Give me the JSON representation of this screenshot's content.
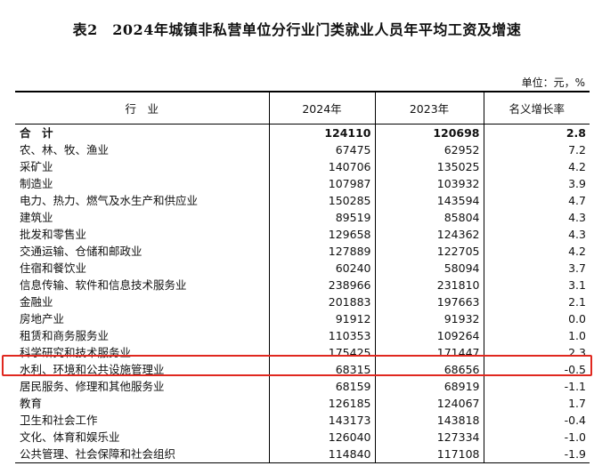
{
  "title": "表2　2024年城镇非私营单位分行业门类就业人员年平均工资及增速",
  "unit": "单位：元，%",
  "headers": [
    "行　业",
    "2024年",
    "2023年",
    "名义增长率"
  ],
  "rows": [
    {
      "industry": "合　计",
      "y2024": "124110",
      "y2023": "120698",
      "growth": "2.8"
    },
    {
      "industry": "农、林、牧、渔业",
      "y2024": "67475",
      "y2023": "62952",
      "growth": "7.2"
    },
    {
      "industry": "采矿业",
      "y2024": "140706",
      "y2023": "135025",
      "growth": "4.2"
    },
    {
      "industry": "制造业",
      "y2024": "107987",
      "y2023": "103932",
      "growth": "3.9"
    },
    {
      "industry": "电力、热力、燃气及水生产和供应业",
      "y2024": "150285",
      "y2023": "143594",
      "growth": "4.7"
    },
    {
      "industry": "建筑业",
      "y2024": "89519",
      "y2023": "85804",
      "growth": "4.3"
    },
    {
      "industry": "批发和零售业",
      "y2024": "129658",
      "y2023": "124362",
      "growth": "4.3"
    },
    {
      "industry": "交通运输、仓储和邮政业",
      "y2024": "127889",
      "y2023": "122705",
      "growth": "4.2"
    },
    {
      "industry": "住宿和餐饮业",
      "y2024": "60240",
      "y2023": "58094",
      "growth": "3.7"
    },
    {
      "industry": "信息传输、软件和信息技术服务业",
      "y2024": "238966",
      "y2023": "231810",
      "growth": "3.1"
    },
    {
      "industry": "金融业",
      "y2024": "201883",
      "y2023": "197663",
      "growth": "2.1"
    },
    {
      "industry": "房地产业",
      "y2024": "91912",
      "y2023": "91932",
      "growth": "0.0"
    },
    {
      "industry": "租赁和商务服务业",
      "y2024": "110353",
      "y2023": "109264",
      "growth": "1.0"
    },
    {
      "industry": "科学研究和技术服务业",
      "y2024": "175425",
      "y2023": "171447",
      "growth": "2.3"
    },
    {
      "industry": "水利、环境和公共设施管理业",
      "y2024": "68315",
      "y2023": "68656",
      "growth": "-0.5"
    },
    {
      "industry": "居民服务、修理和其他服务业",
      "y2024": "68159",
      "y2023": "68919",
      "growth": "-1.1"
    },
    {
      "industry": "教育",
      "y2024": "126185",
      "y2023": "124067",
      "growth": "1.7"
    },
    {
      "industry": "卫生和社会工作",
      "y2024": "143173",
      "y2023": "143818",
      "growth": "-0.4"
    },
    {
      "industry": "文化、体育和娱乐业",
      "y2024": "126040",
      "y2023": "127334",
      "growth": "-1.0"
    },
    {
      "industry": "公共管理、社会保障和社会组织",
      "y2024": "114840",
      "y2023": "117108",
      "growth": "-1.9"
    }
  ],
  "highlight_color": "#e0281f"
}
